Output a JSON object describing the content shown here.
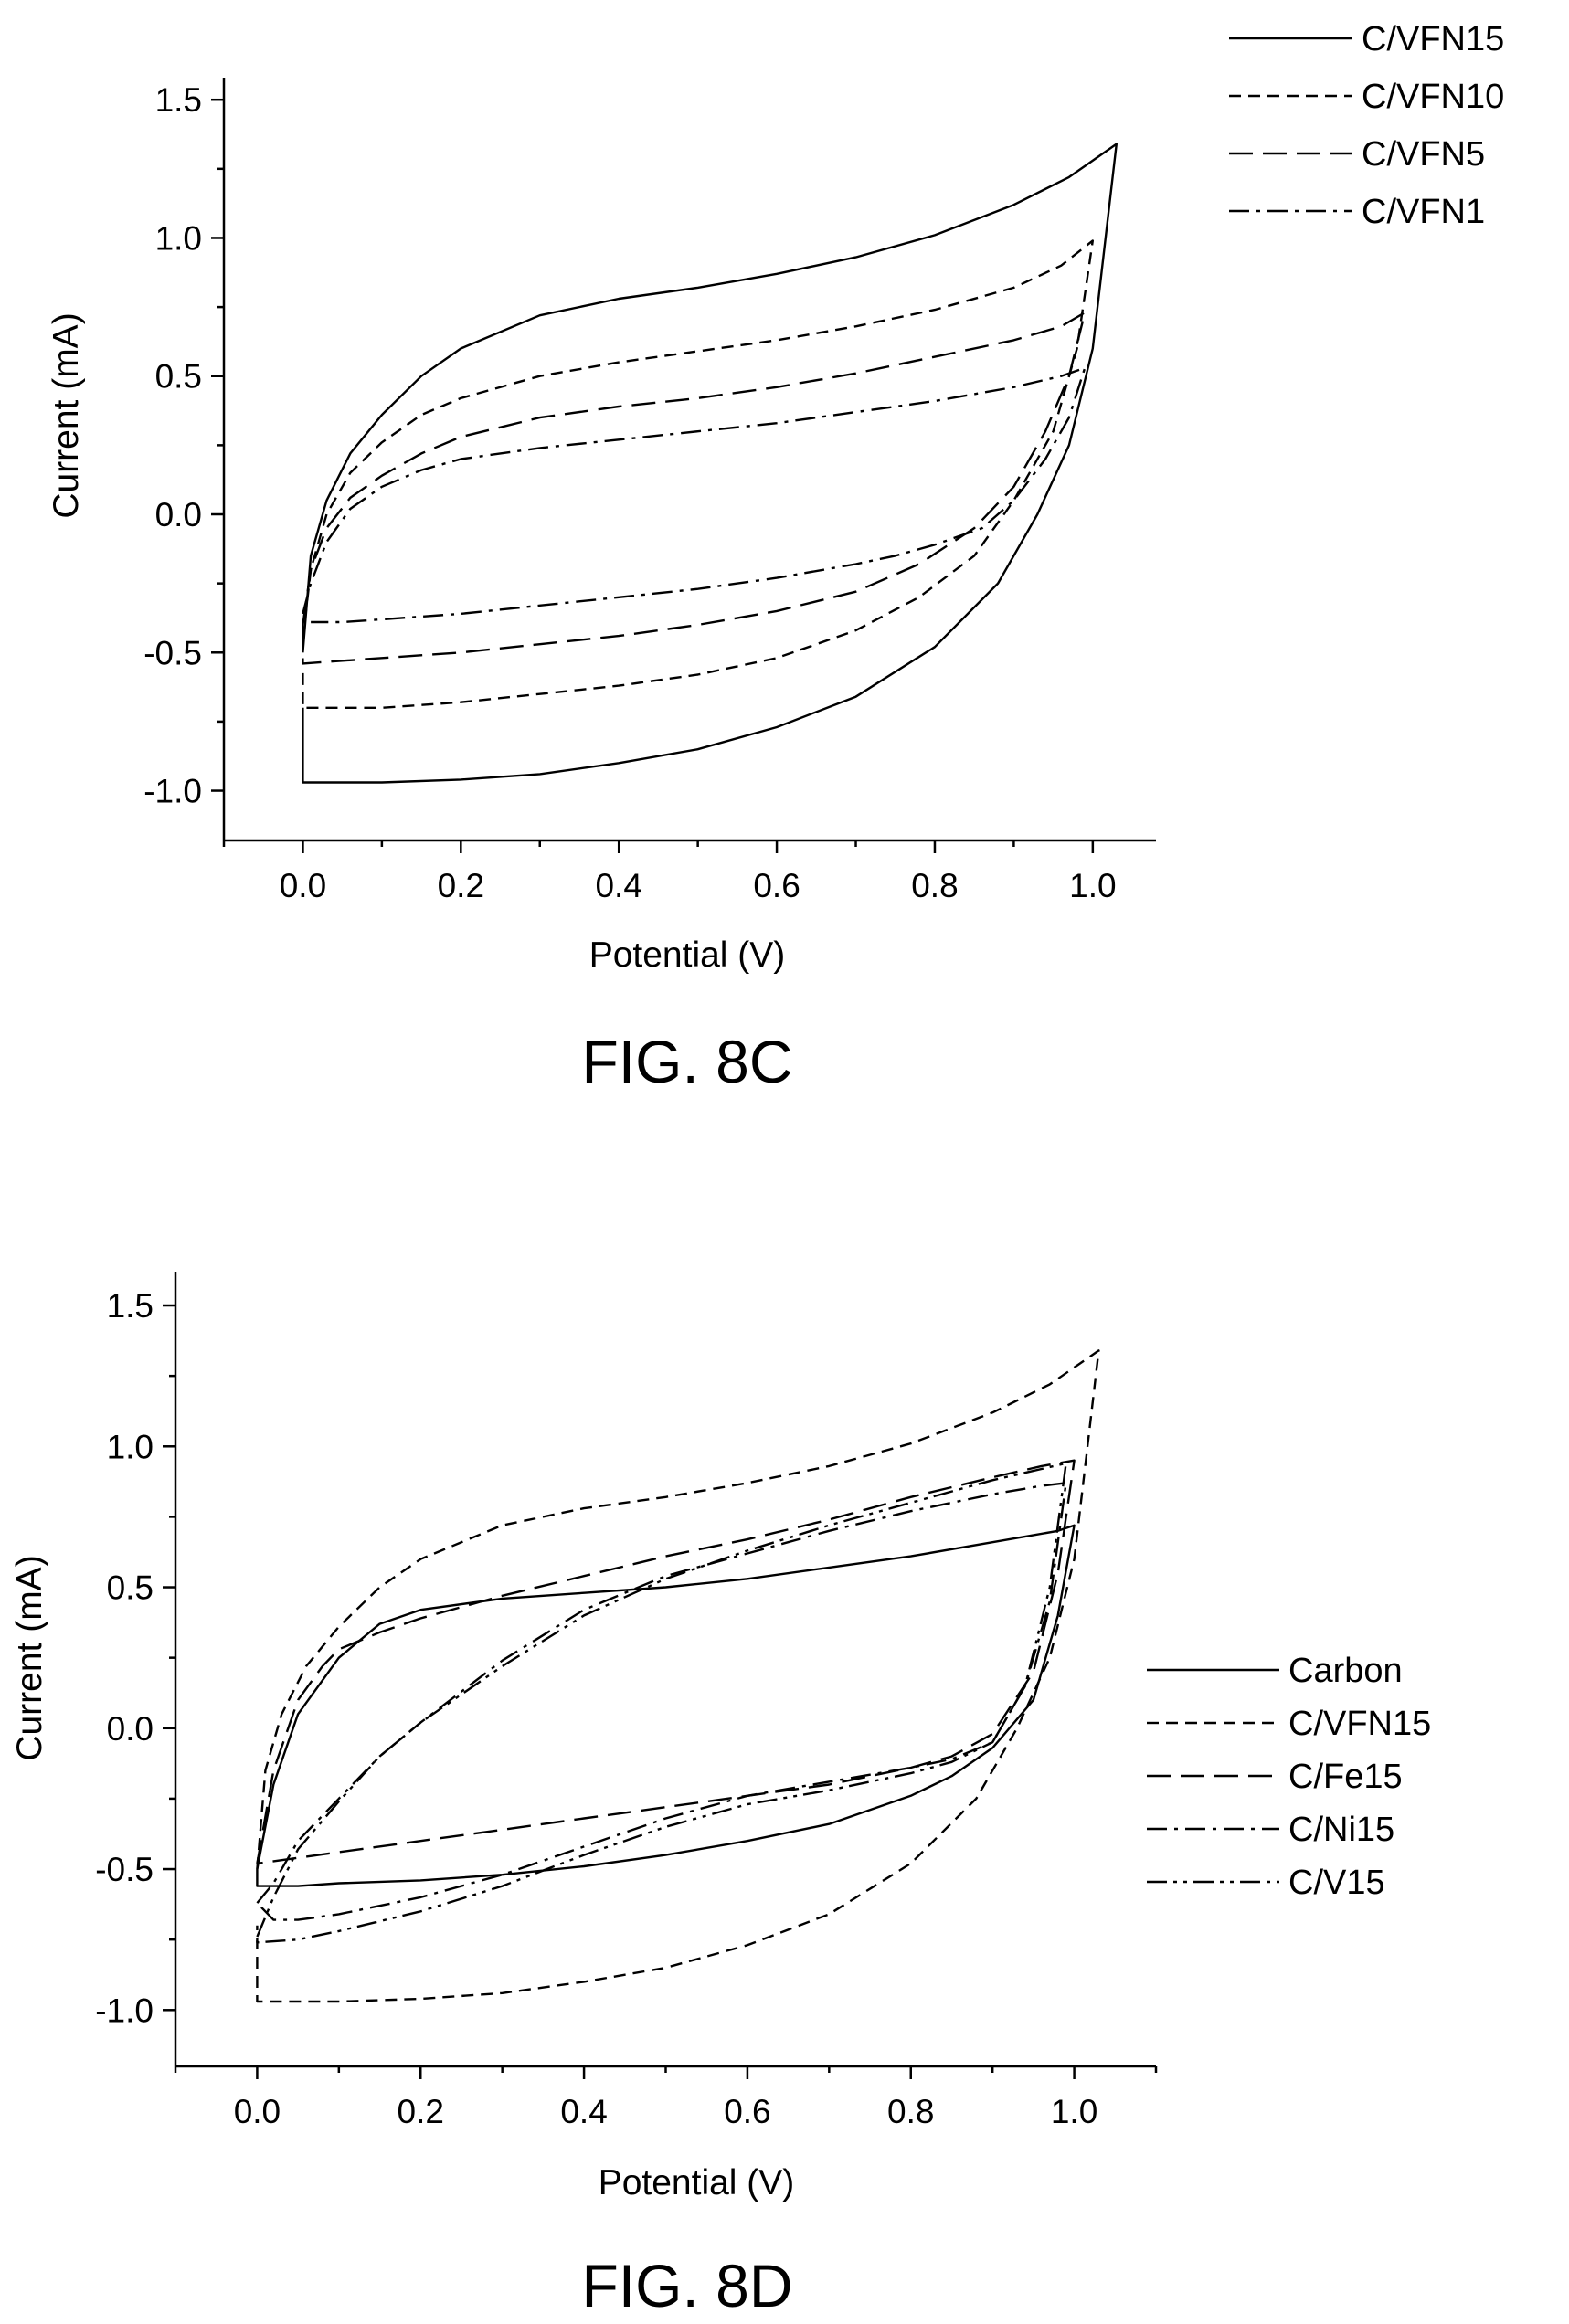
{
  "chart_data": [
    {
      "type": "line",
      "figure_label": "FIG. 8C",
      "title": "",
      "xlabel": "Potential (V)",
      "ylabel": "Current (mA)",
      "xlim": [
        -0.1,
        1.08
      ],
      "ylim": [
        -1.18,
        1.58
      ],
      "xticks": [
        0.0,
        0.2,
        0.4,
        0.6,
        0.8,
        1.0
      ],
      "xtick_labels": [
        "0.0",
        "0.2",
        "0.4",
        "0.6",
        "0.8",
        "1.0"
      ],
      "yticks": [
        -1.0,
        -0.5,
        0.0,
        0.5,
        1.0,
        1.5
      ],
      "ytick_labels": [
        "-1.0",
        "-0.5",
        "0.0",
        "0.5",
        "1.0",
        "1.5"
      ],
      "grid": false,
      "legend_position": "top-right",
      "series": [
        {
          "name": "C/VFN15",
          "dash": "solid",
          "x": [
            0.0,
            0.01,
            0.03,
            0.06,
            0.1,
            0.15,
            0.2,
            0.3,
            0.4,
            0.5,
            0.6,
            0.7,
            0.8,
            0.9,
            0.97,
            1.03,
            1.0,
            0.97,
            0.93,
            0.88,
            0.8,
            0.7,
            0.6,
            0.5,
            0.4,
            0.3,
            0.2,
            0.1,
            0.05,
            0.0,
            0.0
          ],
          "y": [
            -0.5,
            -0.15,
            0.05,
            0.22,
            0.36,
            0.5,
            0.6,
            0.72,
            0.78,
            0.82,
            0.87,
            0.93,
            1.01,
            1.12,
            1.22,
            1.34,
            0.6,
            0.25,
            0.0,
            -0.25,
            -0.48,
            -0.66,
            -0.77,
            -0.85,
            -0.9,
            -0.94,
            -0.96,
            -0.97,
            -0.97,
            -0.97,
            -0.7
          ]
        },
        {
          "name": "C/VFN10",
          "dash": "dash-short",
          "x": [
            0.0,
            0.01,
            0.03,
            0.06,
            0.1,
            0.15,
            0.2,
            0.3,
            0.4,
            0.5,
            0.6,
            0.7,
            0.8,
            0.9,
            0.96,
            1.0,
            0.98,
            0.95,
            0.9,
            0.85,
            0.78,
            0.7,
            0.6,
            0.5,
            0.4,
            0.3,
            0.2,
            0.1,
            0.0,
            0.0
          ],
          "y": [
            -0.45,
            -0.2,
            0.0,
            0.15,
            0.26,
            0.36,
            0.42,
            0.5,
            0.55,
            0.59,
            0.63,
            0.68,
            0.74,
            0.82,
            0.9,
            0.99,
            0.6,
            0.3,
            0.05,
            -0.15,
            -0.3,
            -0.42,
            -0.52,
            -0.58,
            -0.62,
            -0.65,
            -0.68,
            -0.7,
            -0.7,
            -0.55
          ]
        },
        {
          "name": "C/VFN5",
          "dash": "dash-long",
          "x": [
            0.0,
            0.01,
            0.03,
            0.06,
            0.1,
            0.15,
            0.2,
            0.3,
            0.4,
            0.5,
            0.6,
            0.7,
            0.8,
            0.9,
            0.96,
            0.99,
            0.97,
            0.94,
            0.9,
            0.85,
            0.78,
            0.7,
            0.6,
            0.5,
            0.4,
            0.3,
            0.2,
            0.1,
            0.0,
            0.0
          ],
          "y": [
            -0.4,
            -0.2,
            -0.05,
            0.06,
            0.14,
            0.22,
            0.28,
            0.35,
            0.39,
            0.42,
            0.46,
            0.51,
            0.57,
            0.63,
            0.68,
            0.73,
            0.5,
            0.3,
            0.1,
            -0.05,
            -0.18,
            -0.28,
            -0.35,
            -0.4,
            -0.44,
            -0.47,
            -0.5,
            -0.52,
            -0.54,
            -0.4
          ]
        },
        {
          "name": "C/VFN1",
          "dash": "dash-dot",
          "x": [
            0.0,
            0.01,
            0.03,
            0.06,
            0.1,
            0.15,
            0.2,
            0.3,
            0.4,
            0.5,
            0.6,
            0.7,
            0.8,
            0.9,
            0.96,
            0.99,
            0.97,
            0.94,
            0.9,
            0.86,
            0.8,
            0.75,
            0.7,
            0.6,
            0.5,
            0.4,
            0.3,
            0.2,
            0.1,
            0.05,
            0.01
          ],
          "y": [
            -0.36,
            -0.25,
            -0.1,
            0.02,
            0.1,
            0.16,
            0.2,
            0.24,
            0.27,
            0.3,
            0.33,
            0.37,
            0.41,
            0.46,
            0.5,
            0.53,
            0.35,
            0.2,
            0.05,
            -0.05,
            -0.11,
            -0.15,
            -0.18,
            -0.23,
            -0.27,
            -0.3,
            -0.33,
            -0.36,
            -0.38,
            -0.39,
            -0.39
          ]
        }
      ]
    },
    {
      "type": "line",
      "figure_label": "FIG. 8D",
      "title": "",
      "xlabel": "Potential (V)",
      "ylabel": "Current (mA)",
      "xlim": [
        -0.1,
        1.1
      ],
      "ylim": [
        -1.2,
        1.62
      ],
      "xticks": [
        0.0,
        0.2,
        0.4,
        0.6,
        0.8,
        1.0
      ],
      "xtick_labels": [
        "0.0",
        "0.2",
        "0.4",
        "0.6",
        "0.8",
        "1.0"
      ],
      "yticks": [
        -1.0,
        -0.5,
        0.0,
        0.5,
        1.0,
        1.5
      ],
      "ytick_labels": [
        "-1.0",
        "-0.5",
        "0.0",
        "0.5",
        "1.0",
        "1.5"
      ],
      "grid": false,
      "legend_position": "right",
      "series": [
        {
          "name": "Carbon",
          "dash": "solid",
          "x": [
            0.0,
            0.02,
            0.05,
            0.1,
            0.15,
            0.2,
            0.3,
            0.4,
            0.5,
            0.6,
            0.7,
            0.8,
            0.9,
            0.98,
            1.0,
            0.98,
            0.95,
            0.9,
            0.85,
            0.8,
            0.7,
            0.6,
            0.5,
            0.4,
            0.3,
            0.2,
            0.1,
            0.05,
            0.0,
            0.0
          ],
          "y": [
            -0.5,
            -0.2,
            0.05,
            0.25,
            0.37,
            0.42,
            0.46,
            0.48,
            0.5,
            0.53,
            0.57,
            0.61,
            0.66,
            0.7,
            0.72,
            0.4,
            0.1,
            -0.07,
            -0.17,
            -0.24,
            -0.34,
            -0.4,
            -0.45,
            -0.49,
            -0.52,
            -0.54,
            -0.55,
            -0.56,
            -0.56,
            -0.5
          ]
        },
        {
          "name": "C/VFN15",
          "dash": "dash-short",
          "x": [
            0.0,
            0.01,
            0.03,
            0.06,
            0.1,
            0.15,
            0.2,
            0.3,
            0.4,
            0.5,
            0.6,
            0.7,
            0.8,
            0.9,
            0.97,
            1.03,
            1.0,
            0.97,
            0.93,
            0.88,
            0.8,
            0.7,
            0.6,
            0.5,
            0.4,
            0.3,
            0.2,
            0.1,
            0.05,
            0.0,
            0.0
          ],
          "y": [
            -0.5,
            -0.15,
            0.05,
            0.22,
            0.36,
            0.5,
            0.6,
            0.72,
            0.78,
            0.82,
            0.87,
            0.93,
            1.01,
            1.12,
            1.22,
            1.34,
            0.6,
            0.25,
            0.0,
            -0.25,
            -0.48,
            -0.66,
            -0.77,
            -0.85,
            -0.9,
            -0.94,
            -0.96,
            -0.97,
            -0.97,
            -0.97,
            -0.7
          ]
        },
        {
          "name": "C/Fe15",
          "dash": "dash-long",
          "x": [
            0.0,
            0.02,
            0.05,
            0.08,
            0.1,
            0.15,
            0.2,
            0.3,
            0.4,
            0.5,
            0.6,
            0.7,
            0.8,
            0.9,
            0.96,
            1.0,
            0.98,
            0.95,
            0.9,
            0.85,
            0.8,
            0.7,
            0.6,
            0.5,
            0.4,
            0.3,
            0.2,
            0.1,
            0.05,
            0.0,
            0.0
          ],
          "y": [
            -0.48,
            -0.15,
            0.1,
            0.22,
            0.28,
            0.34,
            0.39,
            0.47,
            0.54,
            0.61,
            0.67,
            0.74,
            0.82,
            0.89,
            0.93,
            0.95,
            0.55,
            0.2,
            -0.02,
            -0.1,
            -0.14,
            -0.2,
            -0.24,
            -0.28,
            -0.32,
            -0.36,
            -0.4,
            -0.44,
            -0.46,
            -0.48,
            -0.48
          ]
        },
        {
          "name": "C/Ni15",
          "dash": "dash-dot",
          "x": [
            0.0,
            0.02,
            0.05,
            0.1,
            0.15,
            0.2,
            0.3,
            0.4,
            0.5,
            0.6,
            0.7,
            0.8,
            0.9,
            0.96,
            0.99,
            0.97,
            0.94,
            0.9,
            0.85,
            0.8,
            0.7,
            0.6,
            0.5,
            0.4,
            0.3,
            0.2,
            0.1,
            0.05,
            0.02,
            0.0
          ],
          "y": [
            -0.62,
            -0.55,
            -0.4,
            -0.25,
            -0.1,
            0.02,
            0.24,
            0.42,
            0.54,
            0.62,
            0.7,
            0.77,
            0.83,
            0.86,
            0.87,
            0.45,
            0.15,
            -0.05,
            -0.11,
            -0.14,
            -0.19,
            -0.24,
            -0.32,
            -0.42,
            -0.52,
            -0.6,
            -0.66,
            -0.68,
            -0.68,
            -0.62
          ]
        },
        {
          "name": "C/V15",
          "dash": "dash-dot-dot",
          "x": [
            0.0,
            0.02,
            0.05,
            0.1,
            0.15,
            0.2,
            0.3,
            0.4,
            0.5,
            0.6,
            0.7,
            0.8,
            0.9,
            0.96,
            0.99,
            0.97,
            0.94,
            0.9,
            0.85,
            0.8,
            0.7,
            0.6,
            0.5,
            0.4,
            0.3,
            0.2,
            0.1,
            0.05,
            0.0,
            0.0
          ],
          "y": [
            -0.74,
            -0.6,
            -0.43,
            -0.26,
            -0.1,
            0.02,
            0.22,
            0.4,
            0.53,
            0.63,
            0.72,
            0.8,
            0.88,
            0.92,
            0.94,
            0.5,
            0.15,
            -0.05,
            -0.12,
            -0.16,
            -0.22,
            -0.27,
            -0.35,
            -0.45,
            -0.56,
            -0.65,
            -0.72,
            -0.75,
            -0.76,
            -0.74
          ]
        }
      ]
    }
  ],
  "dash_patterns": {
    "solid": "",
    "dash-short": "13 8",
    "dash-long": "26 11",
    "dash-dot": "22 8 4 8",
    "dash-dot-dot": "22 7 4 7 4 7"
  }
}
